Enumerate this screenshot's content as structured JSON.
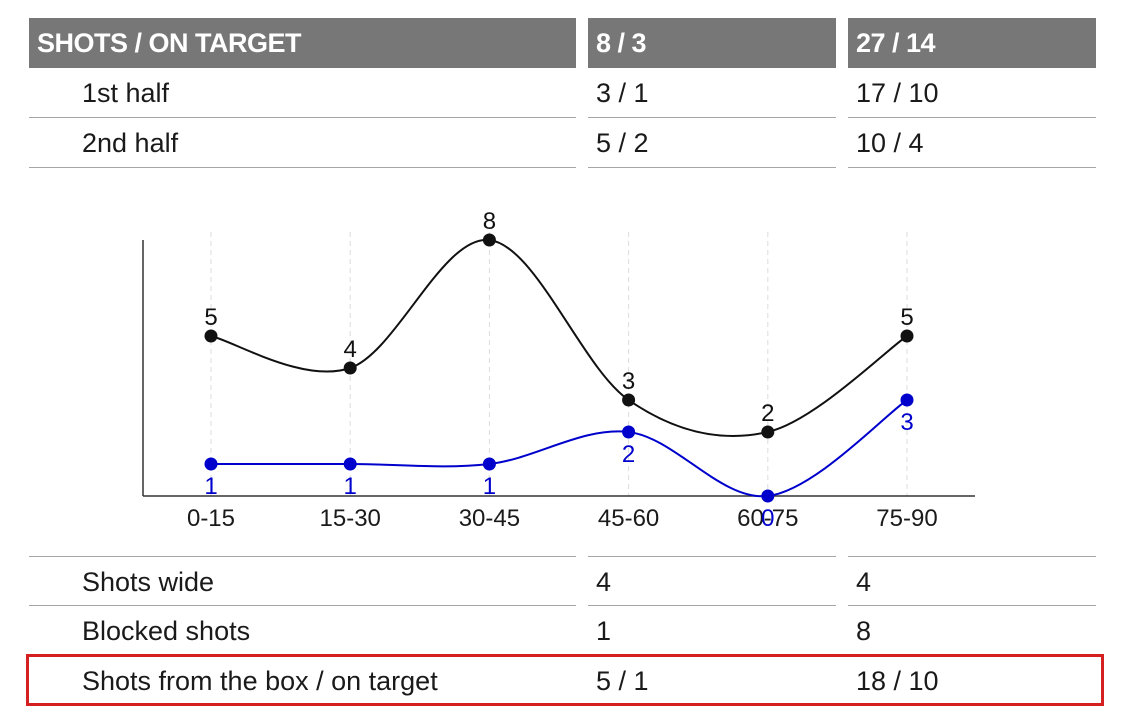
{
  "table_top": {
    "header": {
      "label": "SHOTS / ON TARGET",
      "team_a": "8 / 3",
      "team_b": "27 / 14"
    },
    "rows": [
      {
        "label": "1st half",
        "team_a": "3 / 1",
        "team_b": "17 / 10"
      },
      {
        "label": "2nd half",
        "team_a": "5 / 2",
        "team_b": "10 / 4"
      }
    ]
  },
  "chart_data": {
    "type": "line",
    "categories": [
      "0-15",
      "15-30",
      "30-45",
      "45-60",
      "60-75",
      "75-90"
    ],
    "series": [
      {
        "values": [
          5,
          4,
          8,
          3,
          2,
          5
        ],
        "color": "#111111"
      },
      {
        "values": [
          1,
          1,
          1,
          2,
          0,
          3
        ],
        "color": "#0000cc"
      }
    ],
    "ylim": [
      0,
      8
    ],
    "grid": "vertical dashed",
    "legend": "none"
  },
  "table_bottom": {
    "rows": [
      {
        "label": "Shots wide",
        "team_a": "4",
        "team_b": "4"
      },
      {
        "label": "Blocked shots",
        "team_a": "1",
        "team_b": "8"
      },
      {
        "label": "Shots from the box / on target",
        "team_a": "5 / 1",
        "team_b": "18 / 10",
        "highlighted": true
      }
    ],
    "highlight_color": "#d42020"
  }
}
